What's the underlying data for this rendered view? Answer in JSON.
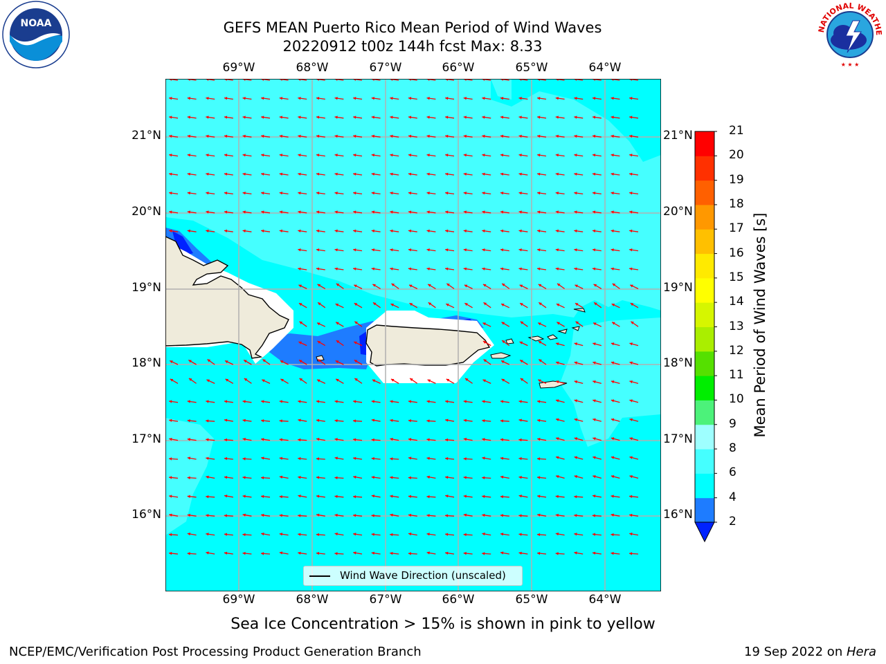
{
  "title": {
    "line1": "GEFS MEAN Puerto Rico Mean Period of Wind Waves",
    "line2": "20220912 t00z 144h fcst   Max: 8.33"
  },
  "axes": {
    "lon_labels": [
      "69°W",
      "68°W",
      "67°W",
      "66°W",
      "65°W",
      "64°W"
    ],
    "lat_labels": [
      "21°N",
      "20°N",
      "19°N",
      "18°N",
      "17°N",
      "16°N"
    ]
  },
  "colorbar": {
    "label": "Mean Period of Wind Waves [s]",
    "ticks": [
      "2",
      "4",
      "6",
      "8",
      "9",
      "10",
      "11",
      "12",
      "13",
      "14",
      "15",
      "16",
      "17",
      "18",
      "19",
      "20",
      "21"
    ],
    "colors": [
      "#0022ff",
      "#1e7cff",
      "#00ffff",
      "#45ffff",
      "#9effff",
      "#4cf27a",
      "#00ee00",
      "#55e000",
      "#aaee00",
      "#d6f600",
      "#ffff00",
      "#ffea00",
      "#ffc000",
      "#ff9800",
      "#ff6000",
      "#ff3000",
      "#ff0000"
    ]
  },
  "legend": {
    "label": "Wind Wave Direction (unscaled)"
  },
  "note": "Sea Ice Concentration > 15% is shown in pink to yellow",
  "footer": {
    "left": "NCEP/EMC/Verification Post Processing Product Generation Branch",
    "right_prefix": "19 Sep 2022 on ",
    "right_host": "Hera"
  },
  "logos": {
    "left": "NOAA",
    "right": "NATIONAL WEATHER SERVICE"
  },
  "colors": {
    "ocean": "#00ffff",
    "ocean_light": "#45ffff",
    "ocean_dark": "#1e7cff",
    "land": "#efebdb",
    "arrow": "#ff0000"
  }
}
